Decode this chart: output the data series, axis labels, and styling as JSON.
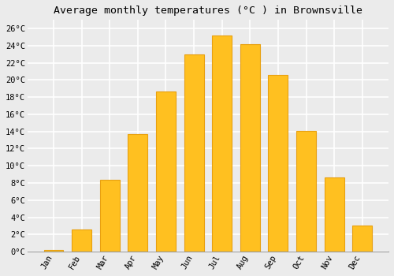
{
  "title": "Average monthly temperatures (°C ) in Brownsville",
  "months": [
    "Jan",
    "Feb",
    "Mar",
    "Apr",
    "May",
    "Jun",
    "Jul",
    "Aug",
    "Sep",
    "Oct",
    "Nov",
    "Dec"
  ],
  "values": [
    0.2,
    2.6,
    8.4,
    13.7,
    18.7,
    23.0,
    25.2,
    24.2,
    20.6,
    14.1,
    8.6,
    3.0
  ],
  "bar_color": "#FFC020",
  "bar_edge_color": "#E8A010",
  "ylim": [
    0,
    27
  ],
  "yticks": [
    0,
    2,
    4,
    6,
    8,
    10,
    12,
    14,
    16,
    18,
    20,
    22,
    24,
    26
  ],
  "ytick_labels": [
    "0°C",
    "2°C",
    "4°C",
    "6°C",
    "8°C",
    "10°C",
    "12°C",
    "14°C",
    "16°C",
    "18°C",
    "20°C",
    "22°C",
    "24°C",
    "26°C"
  ],
  "background_color": "#ebebeb",
  "grid_color": "#ffffff",
  "title_fontsize": 9.5,
  "tick_fontsize": 7.5,
  "font_family": "monospace"
}
